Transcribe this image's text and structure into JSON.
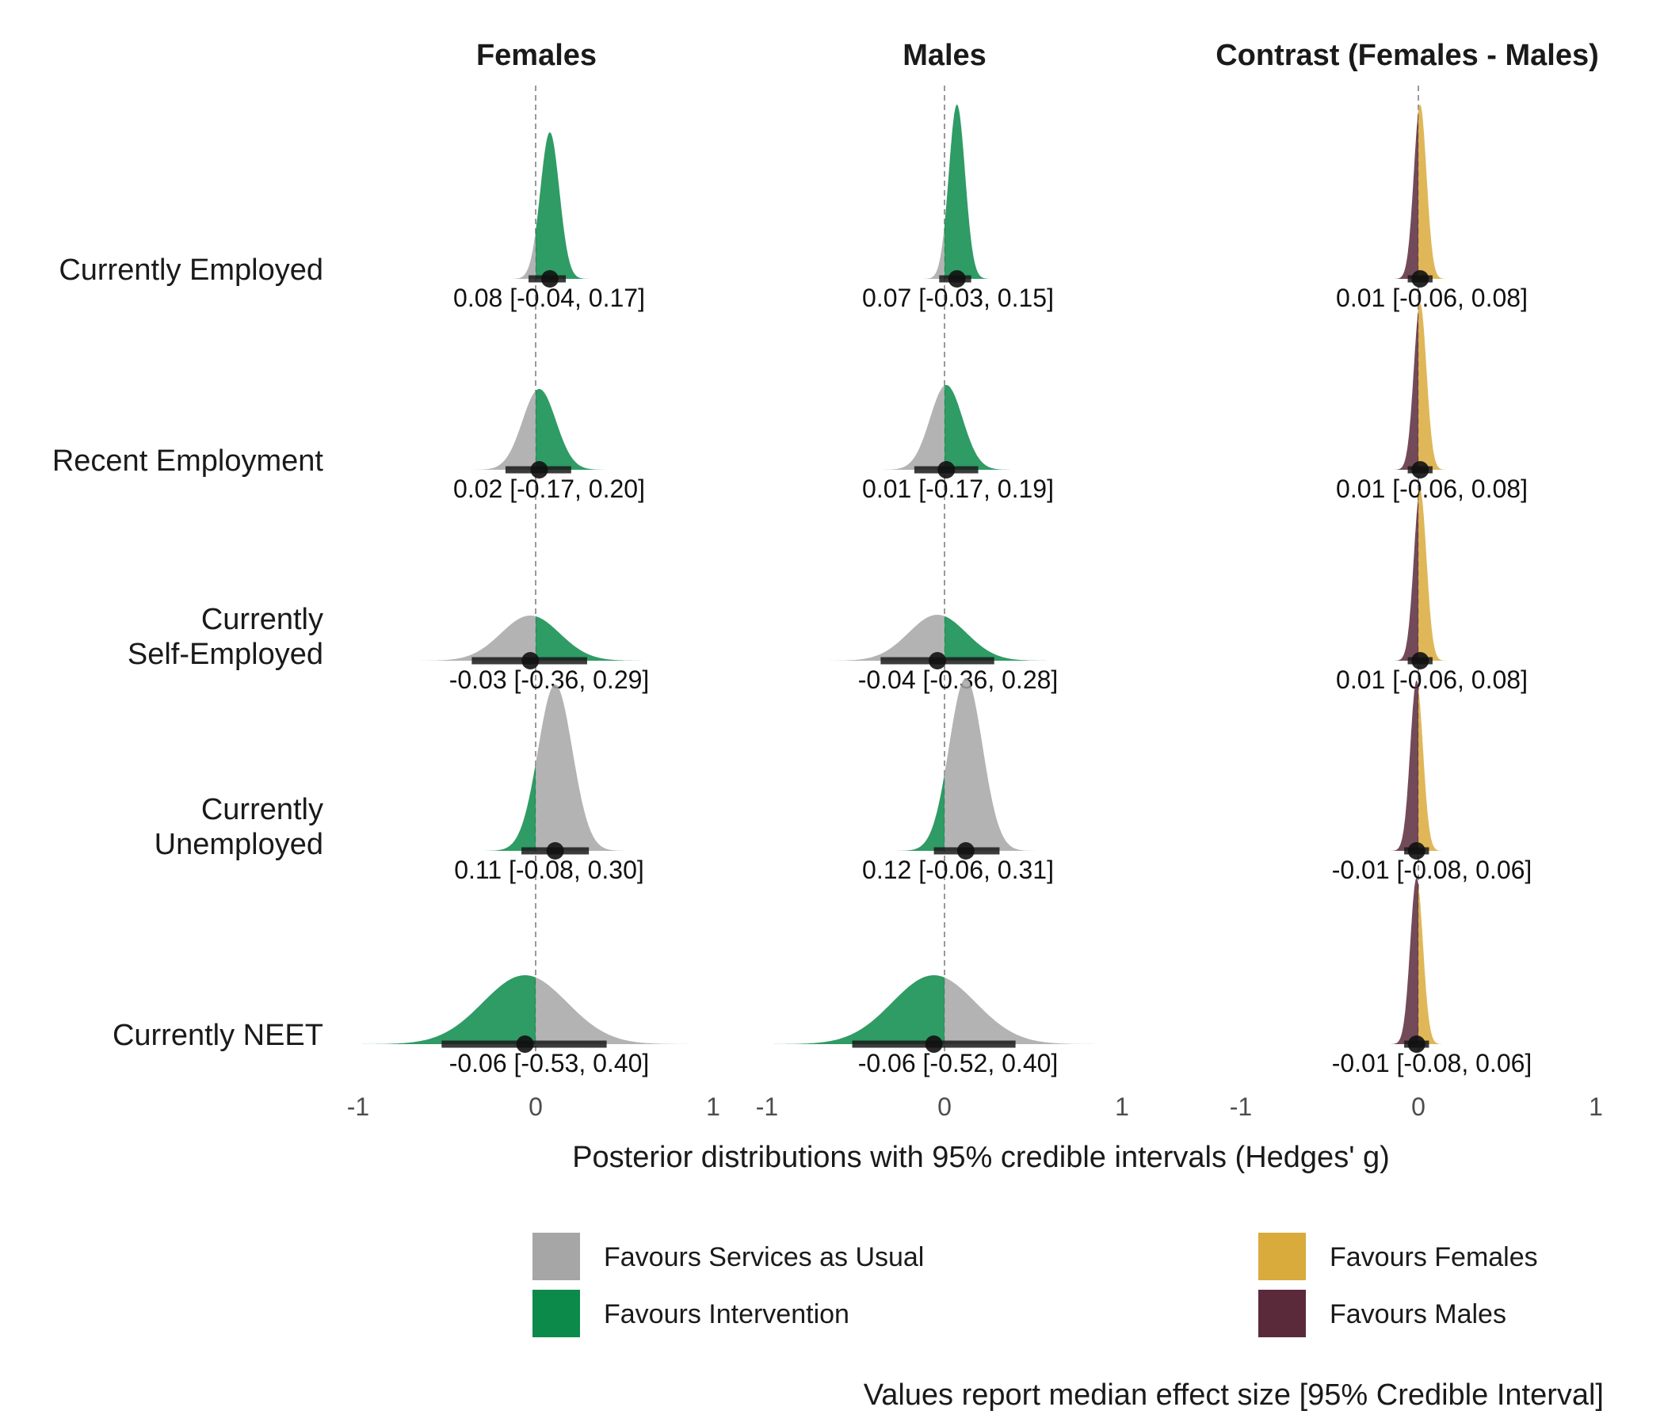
{
  "chart_data": {
    "type": "area",
    "panels": [
      {
        "title": "Females",
        "kind": "effect"
      },
      {
        "title": "Males",
        "kind": "effect"
      },
      {
        "title": "Contrast (Females - Males)",
        "kind": "contrast"
      }
    ],
    "rows": [
      {
        "label": [
          "Currently Employed"
        ]
      },
      {
        "label": [
          "Recent Employment"
        ]
      },
      {
        "label": [
          "Currently",
          "Self-Employed"
        ]
      },
      {
        "label": [
          "Currently",
          "Unemployed"
        ]
      },
      {
        "label": [
          "Currently NEET"
        ]
      }
    ],
    "values": [
      [
        {
          "median": 0.08,
          "low": -0.04,
          "high": 0.17,
          "text": "0.08 [-0.04, 0.17]"
        },
        {
          "median": 0.07,
          "low": -0.03,
          "high": 0.15,
          "text": "0.07 [-0.03, 0.15]"
        },
        {
          "median": 0.01,
          "low": -0.06,
          "high": 0.08,
          "text": "0.01 [-0.06, 0.08]"
        }
      ],
      [
        {
          "median": 0.02,
          "low": -0.17,
          "high": 0.2,
          "text": "0.02 [-0.17, 0.20]"
        },
        {
          "median": 0.01,
          "low": -0.17,
          "high": 0.19,
          "text": "0.01 [-0.17, 0.19]"
        },
        {
          "median": 0.01,
          "low": -0.06,
          "high": 0.08,
          "text": "0.01 [-0.06, 0.08]"
        }
      ],
      [
        {
          "median": -0.03,
          "low": -0.36,
          "high": 0.29,
          "text": "-0.03 [-0.36, 0.29]"
        },
        {
          "median": -0.04,
          "low": -0.36,
          "high": 0.28,
          "text": "-0.04 [-0.36, 0.28]"
        },
        {
          "median": 0.01,
          "low": -0.06,
          "high": 0.08,
          "text": "0.01 [-0.06, 0.08]"
        }
      ],
      [
        {
          "median": 0.11,
          "low": -0.08,
          "high": 0.3,
          "text": "0.11 [-0.08, 0.30]"
        },
        {
          "median": 0.12,
          "low": -0.06,
          "high": 0.31,
          "text": "0.12 [-0.06, 0.31]"
        },
        {
          "median": -0.01,
          "low": -0.08,
          "high": 0.06,
          "text": "-0.01 [-0.08, 0.06]"
        }
      ],
      [
        {
          "median": -0.06,
          "low": -0.53,
          "high": 0.4,
          "text": "-0.06 [-0.53, 0.40]"
        },
        {
          "median": -0.06,
          "low": -0.52,
          "high": 0.4,
          "text": "-0.06 [-0.52, 0.40]"
        },
        {
          "median": -0.01,
          "low": -0.08,
          "high": 0.06,
          "text": "-0.01 [-0.08, 0.06]"
        }
      ]
    ],
    "xlim": [
      -1,
      1
    ],
    "xticks": [
      "-1",
      "0",
      "1"
    ],
    "xlabel": "Posterior distributions with 95% credible intervals (Hedges' g)",
    "reference_line": 0,
    "legend": {
      "placement": "bottom",
      "effect": [
        {
          "label": "Favours Services as Usual",
          "color": "#a6a6a6"
        },
        {
          "label": "Favours Intervention",
          "color": "#0b8a4a"
        }
      ],
      "contrast": [
        {
          "label": "Favours Females",
          "color": "#d9aa3c"
        },
        {
          "label": "Favours Males",
          "color": "#5b2a3a"
        }
      ]
    },
    "caption": "Values report median effect size [95% Credible Interval]"
  }
}
